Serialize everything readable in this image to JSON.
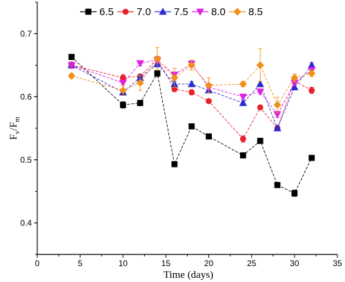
{
  "chart_data": {
    "type": "line",
    "xlabel": "Time (days)",
    "ylabel": {
      "main": "F",
      "sub1": "v",
      "sep": "/F",
      "sub2": "m"
    },
    "xlim": [
      0,
      35
    ],
    "ylim": [
      0.35,
      0.75
    ],
    "xticks": [
      0,
      5,
      10,
      15,
      20,
      25,
      30,
      35
    ],
    "yticks": [
      0.4,
      0.5,
      0.6,
      0.7
    ],
    "yticks_labels": [
      "0.4",
      "0.5",
      "0.6",
      "0.7"
    ],
    "grid": false,
    "legend_position": "top",
    "error_bars": true,
    "series": [
      {
        "name": "6.5",
        "color": "#000000",
        "marker": "square",
        "x": [
          4,
          10,
          12,
          14,
          16,
          18,
          20,
          24,
          26,
          28,
          30,
          32
        ],
        "y": [
          0.663,
          0.587,
          0.59,
          0.637,
          0.493,
          0.553,
          0.537,
          0.507,
          0.53,
          0.46,
          0.447,
          0.503
        ],
        "err": [
          0.004,
          0.005,
          0.004,
          0.005,
          0.003,
          0.004,
          0.003,
          0.004,
          0.004,
          0.003,
          0.005,
          0.003
        ]
      },
      {
        "name": "7.0",
        "color": "#e8202a",
        "marker": "circle",
        "x": [
          4,
          10,
          12,
          14,
          16,
          18,
          20,
          24,
          26,
          28,
          30,
          32
        ],
        "y": [
          0.65,
          0.63,
          0.632,
          0.66,
          0.612,
          0.607,
          0.593,
          0.533,
          0.583,
          0.55,
          0.625,
          0.61
        ],
        "err": [
          0.005,
          0.005,
          0.004,
          0.004,
          0.004,
          0.004,
          0.003,
          0.005,
          0.003,
          0.004,
          0.004,
          0.005
        ]
      },
      {
        "name": "7.5",
        "color": "#2a2ad0",
        "marker": "triangle-up",
        "x": [
          4,
          10,
          12,
          14,
          16,
          18,
          20,
          24,
          26,
          28,
          30,
          32
        ],
        "y": [
          0.65,
          0.607,
          0.63,
          0.652,
          0.62,
          0.62,
          0.61,
          0.59,
          0.62,
          0.55,
          0.615,
          0.65
        ],
        "err": [
          0.004,
          0.005,
          0.005,
          0.005,
          0.005,
          0.004,
          0.004,
          0.004,
          0.004,
          0.004,
          0.004,
          0.004
        ]
      },
      {
        "name": "8.0",
        "color": "#e020e0",
        "marker": "triangle-down",
        "x": [
          4,
          10,
          12,
          14,
          16,
          18,
          20,
          24,
          26,
          28,
          30,
          32
        ],
        "y": [
          0.65,
          0.622,
          0.653,
          0.658,
          0.635,
          0.652,
          0.615,
          0.6,
          0.608,
          0.572,
          0.622,
          0.642
        ],
        "err": [
          0.004,
          0.004,
          0.004,
          0.005,
          0.004,
          0.005,
          0.004,
          0.004,
          0.004,
          0.005,
          0.004,
          0.004
        ]
      },
      {
        "name": "8.5",
        "color": "#f0901a",
        "marker": "diamond",
        "x": [
          4,
          10,
          12,
          14,
          16,
          18,
          20,
          24,
          26,
          28,
          30,
          32
        ],
        "y": [
          0.633,
          0.61,
          0.622,
          0.66,
          0.63,
          0.65,
          0.618,
          0.62,
          0.65,
          0.587,
          0.63,
          0.637
        ],
        "err": [
          0.004,
          0.008,
          0.012,
          0.018,
          0.015,
          0.008,
          0.012,
          0.004,
          0.026,
          0.012,
          0.006,
          0.005
        ]
      }
    ]
  }
}
